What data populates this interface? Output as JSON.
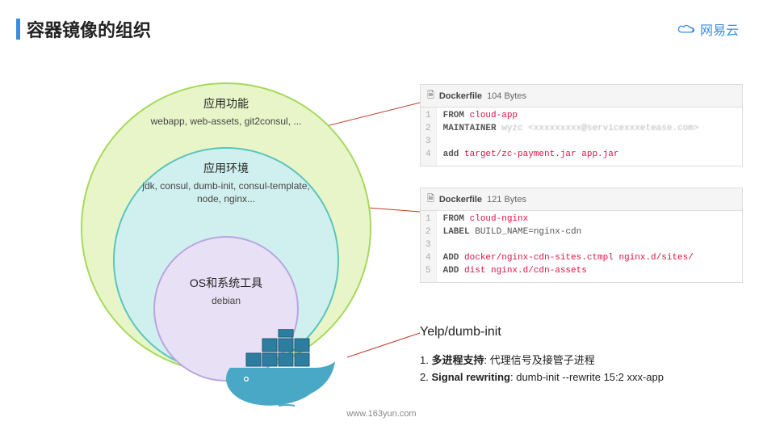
{
  "header": {
    "title": "容器镜像的组织",
    "title_bar_color": "#3b8ede",
    "logo_text": "网易云",
    "logo_color": "#3b8ede"
  },
  "diagram": {
    "rings": {
      "outer": {
        "title": "应用功能",
        "subtitle": "webapp, web-assets, git2consul, ...",
        "fill": "#e8f5c8",
        "border": "#a6d95a"
      },
      "mid": {
        "title": "应用环境",
        "subtitle": "jdk, consul, dumb-init, consul-template, node, nginx...",
        "fill": "#d0f0ef",
        "border": "#5bc4bd"
      },
      "inner": {
        "title": "OS和系统工具",
        "subtitle": "debian",
        "fill": "#e8e0f5",
        "border": "#b8a5e0"
      }
    },
    "whale_color": "#4aa8c7",
    "container_color": "#2d7da0"
  },
  "codebox1": {
    "filename": "Dockerfile",
    "size": "104 Bytes",
    "lines": [
      {
        "n": 1,
        "kw": "FROM",
        "rest": "cloud-app",
        "rest_color": "#d14"
      },
      {
        "n": 2,
        "kw": "MAINTAINER",
        "rest": "wyzc <xxxxxxxxx@servicexxxetease.com>",
        "rest_color": "#bbb",
        "blur": true
      },
      {
        "n": 3,
        "kw": "",
        "rest": ""
      },
      {
        "n": 4,
        "kw": "add",
        "rest": "target/zc-payment.jar app.jar",
        "rest_color": "#d14"
      }
    ]
  },
  "codebox2": {
    "filename": "Dockerfile",
    "size": "121 Bytes",
    "lines": [
      {
        "n": 1,
        "kw": "FROM",
        "rest": "cloud-nginx",
        "rest_color": "#d14"
      },
      {
        "n": 2,
        "kw": "LABEL",
        "rest": "BUILD_NAME=nginx-cdn",
        "rest_color": "#555"
      },
      {
        "n": 3,
        "kw": "",
        "rest": ""
      },
      {
        "n": 4,
        "kw": "ADD",
        "rest": "docker/nginx-cdn-sites.ctmpl nginx.d/sites/",
        "rest_color": "#d14"
      },
      {
        "n": 5,
        "kw": "ADD",
        "rest": "dist nginx.d/cdn-assets",
        "rest_color": "#d14"
      }
    ]
  },
  "yelp": {
    "title": "Yelp/dumb-init",
    "items": [
      {
        "n": "1.",
        "bold": "多进程支持",
        "rest": ": 代理信号及接管子进程"
      },
      {
        "n": "2.",
        "bold": "Signal rewriting",
        "rest": ": dumb-init --rewrite 15:2 xxx-app"
      }
    ]
  },
  "connector_color": "#c0392b",
  "footer": {
    "text": "www.163yun.com"
  }
}
